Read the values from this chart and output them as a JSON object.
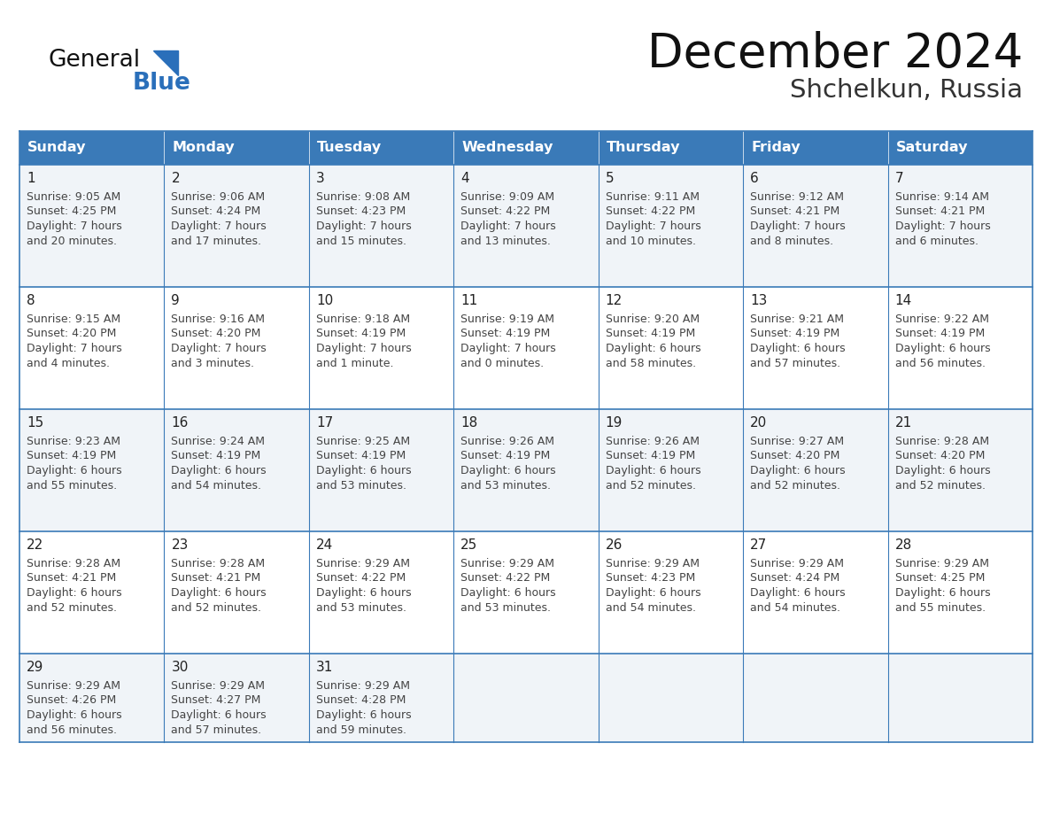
{
  "title": "December 2024",
  "subtitle": "Shchelkun, Russia",
  "days_of_week": [
    "Sunday",
    "Monday",
    "Tuesday",
    "Wednesday",
    "Thursday",
    "Friday",
    "Saturday"
  ],
  "header_bg": "#3a7ab8",
  "header_text": "#ffffff",
  "cell_bg_light": "#f0f4f8",
  "cell_bg_white": "#ffffff",
  "cell_border": "#3a7ab8",
  "day_num_color": "#222222",
  "cell_text_color": "#444444",
  "title_color": "#111111",
  "subtitle_color": "#333333",
  "logo_general_color": "#111111",
  "logo_blue_color": "#2a6fba",
  "weeks": [
    [
      {
        "day": 1,
        "sunrise": "9:05 AM",
        "sunset": "4:25 PM",
        "daylight_l1": "7 hours",
        "daylight_l2": "and 20 minutes."
      },
      {
        "day": 2,
        "sunrise": "9:06 AM",
        "sunset": "4:24 PM",
        "daylight_l1": "7 hours",
        "daylight_l2": "and 17 minutes."
      },
      {
        "day": 3,
        "sunrise": "9:08 AM",
        "sunset": "4:23 PM",
        "daylight_l1": "7 hours",
        "daylight_l2": "and 15 minutes."
      },
      {
        "day": 4,
        "sunrise": "9:09 AM",
        "sunset": "4:22 PM",
        "daylight_l1": "7 hours",
        "daylight_l2": "and 13 minutes."
      },
      {
        "day": 5,
        "sunrise": "9:11 AM",
        "sunset": "4:22 PM",
        "daylight_l1": "7 hours",
        "daylight_l2": "and 10 minutes."
      },
      {
        "day": 6,
        "sunrise": "9:12 AM",
        "sunset": "4:21 PM",
        "daylight_l1": "7 hours",
        "daylight_l2": "and 8 minutes."
      },
      {
        "day": 7,
        "sunrise": "9:14 AM",
        "sunset": "4:21 PM",
        "daylight_l1": "7 hours",
        "daylight_l2": "and 6 minutes."
      }
    ],
    [
      {
        "day": 8,
        "sunrise": "9:15 AM",
        "sunset": "4:20 PM",
        "daylight_l1": "7 hours",
        "daylight_l2": "and 4 minutes."
      },
      {
        "day": 9,
        "sunrise": "9:16 AM",
        "sunset": "4:20 PM",
        "daylight_l1": "7 hours",
        "daylight_l2": "and 3 minutes."
      },
      {
        "day": 10,
        "sunrise": "9:18 AM",
        "sunset": "4:19 PM",
        "daylight_l1": "7 hours",
        "daylight_l2": "and 1 minute."
      },
      {
        "day": 11,
        "sunrise": "9:19 AM",
        "sunset": "4:19 PM",
        "daylight_l1": "7 hours",
        "daylight_l2": "and 0 minutes."
      },
      {
        "day": 12,
        "sunrise": "9:20 AM",
        "sunset": "4:19 PM",
        "daylight_l1": "6 hours",
        "daylight_l2": "and 58 minutes."
      },
      {
        "day": 13,
        "sunrise": "9:21 AM",
        "sunset": "4:19 PM",
        "daylight_l1": "6 hours",
        "daylight_l2": "and 57 minutes."
      },
      {
        "day": 14,
        "sunrise": "9:22 AM",
        "sunset": "4:19 PM",
        "daylight_l1": "6 hours",
        "daylight_l2": "and 56 minutes."
      }
    ],
    [
      {
        "day": 15,
        "sunrise": "9:23 AM",
        "sunset": "4:19 PM",
        "daylight_l1": "6 hours",
        "daylight_l2": "and 55 minutes."
      },
      {
        "day": 16,
        "sunrise": "9:24 AM",
        "sunset": "4:19 PM",
        "daylight_l1": "6 hours",
        "daylight_l2": "and 54 minutes."
      },
      {
        "day": 17,
        "sunrise": "9:25 AM",
        "sunset": "4:19 PM",
        "daylight_l1": "6 hours",
        "daylight_l2": "and 53 minutes."
      },
      {
        "day": 18,
        "sunrise": "9:26 AM",
        "sunset": "4:19 PM",
        "daylight_l1": "6 hours",
        "daylight_l2": "and 53 minutes."
      },
      {
        "day": 19,
        "sunrise": "9:26 AM",
        "sunset": "4:19 PM",
        "daylight_l1": "6 hours",
        "daylight_l2": "and 52 minutes."
      },
      {
        "day": 20,
        "sunrise": "9:27 AM",
        "sunset": "4:20 PM",
        "daylight_l1": "6 hours",
        "daylight_l2": "and 52 minutes."
      },
      {
        "day": 21,
        "sunrise": "9:28 AM",
        "sunset": "4:20 PM",
        "daylight_l1": "6 hours",
        "daylight_l2": "and 52 minutes."
      }
    ],
    [
      {
        "day": 22,
        "sunrise": "9:28 AM",
        "sunset": "4:21 PM",
        "daylight_l1": "6 hours",
        "daylight_l2": "and 52 minutes."
      },
      {
        "day": 23,
        "sunrise": "9:28 AM",
        "sunset": "4:21 PM",
        "daylight_l1": "6 hours",
        "daylight_l2": "and 52 minutes."
      },
      {
        "day": 24,
        "sunrise": "9:29 AM",
        "sunset": "4:22 PM",
        "daylight_l1": "6 hours",
        "daylight_l2": "and 53 minutes."
      },
      {
        "day": 25,
        "sunrise": "9:29 AM",
        "sunset": "4:22 PM",
        "daylight_l1": "6 hours",
        "daylight_l2": "and 53 minutes."
      },
      {
        "day": 26,
        "sunrise": "9:29 AM",
        "sunset": "4:23 PM",
        "daylight_l1": "6 hours",
        "daylight_l2": "and 54 minutes."
      },
      {
        "day": 27,
        "sunrise": "9:29 AM",
        "sunset": "4:24 PM",
        "daylight_l1": "6 hours",
        "daylight_l2": "and 54 minutes."
      },
      {
        "day": 28,
        "sunrise": "9:29 AM",
        "sunset": "4:25 PM",
        "daylight_l1": "6 hours",
        "daylight_l2": "and 55 minutes."
      }
    ],
    [
      {
        "day": 29,
        "sunrise": "9:29 AM",
        "sunset": "4:26 PM",
        "daylight_l1": "6 hours",
        "daylight_l2": "and 56 minutes."
      },
      {
        "day": 30,
        "sunrise": "9:29 AM",
        "sunset": "4:27 PM",
        "daylight_l1": "6 hours",
        "daylight_l2": "and 57 minutes."
      },
      {
        "day": 31,
        "sunrise": "9:29 AM",
        "sunset": "4:28 PM",
        "daylight_l1": "6 hours",
        "daylight_l2": "and 59 minutes."
      },
      null,
      null,
      null,
      null
    ]
  ]
}
